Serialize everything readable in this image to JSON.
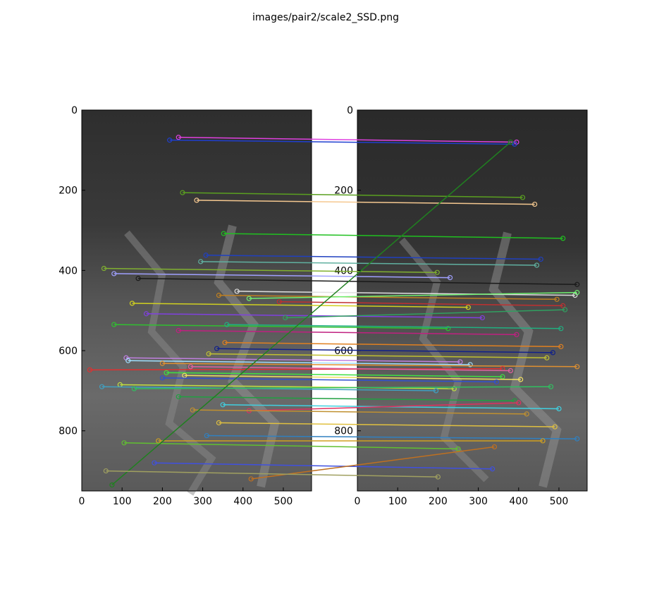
{
  "chart_data": {
    "type": "scatter",
    "title": "images/pair2/scale2_SSD.png",
    "description_kind": "feature-match visualization (two images side by side with connecting match lines)",
    "panels": [
      {
        "name": "left",
        "xlim": [
          0,
          570
        ],
        "ylim": [
          950,
          0
        ],
        "xticks": [
          0,
          100,
          200,
          300,
          400,
          500
        ],
        "yticks": [
          0,
          200,
          400,
          600,
          800
        ]
      },
      {
        "name": "right",
        "xlim": [
          0,
          570
        ],
        "ylim": [
          950,
          0
        ],
        "xticks": [
          0,
          100,
          200,
          300,
          400,
          500
        ],
        "yticks": [
          0,
          200,
          400,
          600,
          800
        ]
      }
    ],
    "grid": false,
    "legend": "none",
    "matches": [
      {
        "x1": 240,
        "y1": 68,
        "x2": 395,
        "y2": 80,
        "color": "#e040e0"
      },
      {
        "x1": 218,
        "y1": 75,
        "x2": 390,
        "y2": 85,
        "color": "#1f3fd0"
      },
      {
        "x1": 250,
        "y1": 206,
        "x2": 410,
        "y2": 218,
        "color": "#5aa020"
      },
      {
        "x1": 285,
        "y1": 225,
        "x2": 440,
        "y2": 235,
        "color": "#f5c890"
      },
      {
        "x1": 352,
        "y1": 308,
        "x2": 510,
        "y2": 320,
        "color": "#20c020"
      },
      {
        "x1": 308,
        "y1": 362,
        "x2": 455,
        "y2": 372,
        "color": "#2040c0"
      },
      {
        "x1": 295,
        "y1": 378,
        "x2": 445,
        "y2": 387,
        "color": "#60b0a0"
      },
      {
        "x1": 55,
        "y1": 395,
        "x2": 198,
        "y2": 405,
        "color": "#80b030"
      },
      {
        "x1": 80,
        "y1": 408,
        "x2": 230,
        "y2": 418,
        "color": "#a0a0ff"
      },
      {
        "x1": 140,
        "y1": 420,
        "x2": 545,
        "y2": 435,
        "color": "#1a1a1a"
      },
      {
        "x1": 385,
        "y1": 452,
        "x2": 540,
        "y2": 462,
        "color": "#e0e0e0"
      },
      {
        "x1": 340,
        "y1": 462,
        "x2": 495,
        "y2": 472,
        "color": "#c08020"
      },
      {
        "x1": 415,
        "y1": 470,
        "x2": 545,
        "y2": 455,
        "color": "#70f070"
      },
      {
        "x1": 125,
        "y1": 482,
        "x2": 275,
        "y2": 492,
        "color": "#d0d020"
      },
      {
        "x1": 490,
        "y1": 478,
        "x2": 510,
        "y2": 488,
        "color": "#c03030"
      },
      {
        "x1": 160,
        "y1": 508,
        "x2": 310,
        "y2": 518,
        "color": "#8040e0"
      },
      {
        "x1": 505,
        "y1": 518,
        "x2": 515,
        "y2": 498,
        "color": "#30a060"
      },
      {
        "x1": 80,
        "y1": 535,
        "x2": 225,
        "y2": 545,
        "color": "#30c030"
      },
      {
        "x1": 360,
        "y1": 535,
        "x2": 505,
        "y2": 545,
        "color": "#20b080"
      },
      {
        "x1": 240,
        "y1": 550,
        "x2": 395,
        "y2": 560,
        "color": "#c02080"
      },
      {
        "x1": 355,
        "y1": 580,
        "x2": 505,
        "y2": 590,
        "color": "#e08020"
      },
      {
        "x1": 335,
        "y1": 595,
        "x2": 485,
        "y2": 605,
        "color": "#10208a"
      },
      {
        "x1": 315,
        "y1": 608,
        "x2": 470,
        "y2": 618,
        "color": "#c0c030"
      },
      {
        "x1": 110,
        "y1": 618,
        "x2": 255,
        "y2": 628,
        "color": "#c080e0"
      },
      {
        "x1": 115,
        "y1": 625,
        "x2": 280,
        "y2": 635,
        "color": "#a0e0ff"
      },
      {
        "x1": 200,
        "y1": 632,
        "x2": 545,
        "y2": 640,
        "color": "#e09030"
      },
      {
        "x1": 20,
        "y1": 648,
        "x2": 360,
        "y2": 645,
        "color": "#e03030"
      },
      {
        "x1": 270,
        "y1": 640,
        "x2": 380,
        "y2": 650,
        "color": "#e060a0"
      },
      {
        "x1": 210,
        "y1": 655,
        "x2": 360,
        "y2": 665,
        "color": "#40e040"
      },
      {
        "x1": 255,
        "y1": 662,
        "x2": 405,
        "y2": 672,
        "color": "#f0e060"
      },
      {
        "x1": 200,
        "y1": 668,
        "x2": 345,
        "y2": 678,
        "color": "#3050d0"
      },
      {
        "x1": 95,
        "y1": 685,
        "x2": 240,
        "y2": 695,
        "color": "#c0e040"
      },
      {
        "x1": 50,
        "y1": 690,
        "x2": 195,
        "y2": 700,
        "color": "#40a0c0"
      },
      {
        "x1": 130,
        "y1": 695,
        "x2": 480,
        "y2": 690,
        "color": "#30c060"
      },
      {
        "x1": 240,
        "y1": 715,
        "x2": 390,
        "y2": 725,
        "color": "#20a040"
      },
      {
        "x1": 350,
        "y1": 735,
        "x2": 500,
        "y2": 745,
        "color": "#40d0e0"
      },
      {
        "x1": 415,
        "y1": 750,
        "x2": 400,
        "y2": 730,
        "color": "#e03060"
      },
      {
        "x1": 275,
        "y1": 748,
        "x2": 420,
        "y2": 758,
        "color": "#c09030"
      },
      {
        "x1": 340,
        "y1": 780,
        "x2": 490,
        "y2": 790,
        "color": "#e0c040"
      },
      {
        "x1": 310,
        "y1": 812,
        "x2": 545,
        "y2": 820,
        "color": "#3080c0"
      },
      {
        "x1": 190,
        "y1": 825,
        "x2": 460,
        "y2": 825,
        "color": "#d0a020"
      },
      {
        "x1": 105,
        "y1": 830,
        "x2": 250,
        "y2": 845,
        "color": "#60c030"
      },
      {
        "x1": 180,
        "y1": 880,
        "x2": 335,
        "y2": 895,
        "color": "#4050e0"
      },
      {
        "x1": 75,
        "y1": 935,
        "x2": 380,
        "y2": 80,
        "color": "#208020"
      },
      {
        "x1": 420,
        "y1": 920,
        "x2": 340,
        "y2": 840,
        "color": "#c07020"
      },
      {
        "x1": 60,
        "y1": 900,
        "x2": 200,
        "y2": 915,
        "color": "#a0a060"
      }
    ]
  }
}
